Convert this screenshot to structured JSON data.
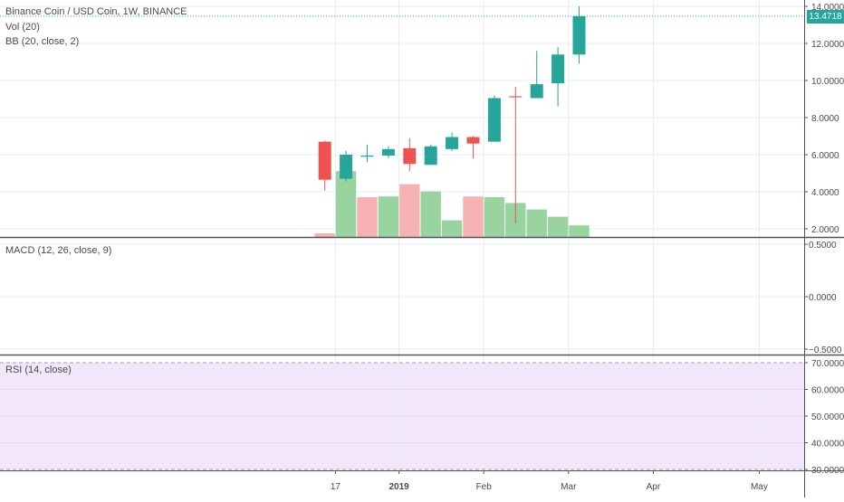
{
  "symbol": {
    "title": "Binance Coin / USD Coin, 1W, BINANCE",
    "vol_label": "Vol (20)",
    "bb_label": "BB (20, close, 2)",
    "macd_label": "MACD (12, 26, close, 9)",
    "rsi_label": "RSI (14, close)",
    "last_price": "13.4718"
  },
  "colors": {
    "up": "#26a69a",
    "down": "#ef5350",
    "vol_up": "#98d3a0",
    "vol_down": "#f6b2b3",
    "rsi_band": "#f2e6fb",
    "grid": "#e6ecf1"
  },
  "chart_data": {
    "type": "candlestick",
    "price_axis": {
      "ylim": [
        1.6,
        14.3
      ],
      "ticks": [
        "14.0000",
        "12.0000",
        "10.0000",
        "8.0000",
        "6.0000",
        "4.0000",
        "2.0000"
      ]
    },
    "macd_axis": {
      "ticks": [
        "0.5000",
        "0.0000",
        "−0.5000"
      ]
    },
    "rsi_axis": {
      "ylim": [
        29,
        72
      ],
      "ticks": [
        "70.0000",
        "60.0000",
        "50.0000",
        "40.0000",
        "30.0000"
      ],
      "bands": [
        70,
        30
      ]
    },
    "time_axis": {
      "labels": [
        "17",
        "2019",
        "Feb",
        "Mar",
        "Apr",
        "May"
      ],
      "label_weeks": [
        1,
        4,
        8,
        12,
        16,
        21
      ]
    },
    "candles": [
      {
        "open": 6.7,
        "high": 6.75,
        "low": 4.05,
        "close": 4.65
      },
      {
        "open": 4.7,
        "high": 6.2,
        "low": 4.55,
        "close": 6.0
      },
      {
        "open": 5.9,
        "high": 6.55,
        "low": 5.6,
        "close": 5.95
      },
      {
        "open": 5.95,
        "high": 6.45,
        "low": 5.8,
        "close": 6.3
      },
      {
        "open": 6.35,
        "high": 6.9,
        "low": 5.1,
        "close": 5.5
      },
      {
        "open": 5.45,
        "high": 6.55,
        "low": 5.45,
        "close": 6.45
      },
      {
        "open": 6.3,
        "high": 7.2,
        "low": 6.2,
        "close": 6.95
      },
      {
        "open": 6.95,
        "high": 7.0,
        "low": 5.8,
        "close": 6.6
      },
      {
        "open": 6.7,
        "high": 9.2,
        "low": 6.7,
        "close": 9.05
      },
      {
        "open": 9.15,
        "high": 9.65,
        "low": 2.3,
        "close": 9.1
      },
      {
        "open": 9.05,
        "high": 11.6,
        "low": 9.05,
        "close": 9.8
      },
      {
        "open": 9.85,
        "high": 11.8,
        "low": 8.6,
        "close": 11.4
      },
      {
        "open": 11.4,
        "high": 14.0,
        "low": 10.9,
        "close": 13.47
      }
    ],
    "volume": [
      0.05,
      0.91,
      0.55,
      0.56,
      0.73,
      0.63,
      0.23,
      0.56,
      0.55,
      0.47,
      0.38,
      0.28,
      0.16
    ],
    "volume_direction": [
      "down",
      "up",
      "down",
      "up",
      "down",
      "up",
      "up",
      "down",
      "up",
      "up",
      "up",
      "up",
      "up"
    ],
    "last_price": 13.4718
  }
}
